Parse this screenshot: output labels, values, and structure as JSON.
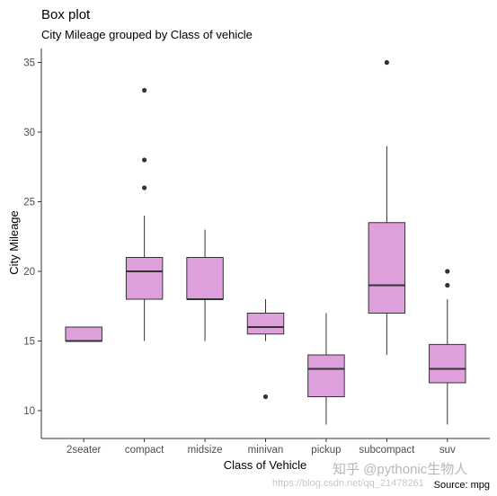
{
  "chart_data": {
    "type": "box",
    "title": "Box plot",
    "subtitle": "City Mileage grouped by Class of vehicle",
    "xlabel": "Class of Vehicle",
    "ylabel": "City Mileage",
    "caption": "Source: mpg",
    "ylim": [
      8,
      36
    ],
    "yticks": [
      10,
      15,
      20,
      25,
      30,
      35
    ],
    "grid": false,
    "box_fill": "#dda0dd",
    "box_stroke": "#333333",
    "categories": [
      "2seater",
      "compact",
      "midsize",
      "minivan",
      "pickup",
      "subcompact",
      "suv"
    ],
    "boxes": [
      {
        "category": "2seater",
        "whisker_low": 15,
        "q1": 15,
        "median": 15,
        "q3": 16,
        "whisker_high": 16,
        "outliers": []
      },
      {
        "category": "compact",
        "whisker_low": 15,
        "q1": 18,
        "median": 20,
        "q3": 21,
        "whisker_high": 24,
        "outliers": [
          26,
          28,
          33
        ]
      },
      {
        "category": "midsize",
        "whisker_low": 15,
        "q1": 18,
        "median": 18,
        "q3": 21,
        "whisker_high": 23,
        "outliers": []
      },
      {
        "category": "minivan",
        "whisker_low": 15,
        "q1": 15.5,
        "median": 16,
        "q3": 17,
        "whisker_high": 18,
        "outliers": [
          11
        ]
      },
      {
        "category": "pickup",
        "whisker_low": 9,
        "q1": 11,
        "median": 13,
        "q3": 14,
        "whisker_high": 17,
        "outliers": []
      },
      {
        "category": "subcompact",
        "whisker_low": 14,
        "q1": 17,
        "median": 19,
        "q3": 23.5,
        "whisker_high": 29,
        "outliers": [
          35
        ]
      },
      {
        "category": "suv",
        "whisker_low": 9,
        "q1": 12,
        "median": 13,
        "q3": 14.75,
        "whisker_high": 18,
        "outliers": [
          19,
          20
        ]
      }
    ]
  },
  "watermark": {
    "main": "知乎 @pythonic生物人",
    "sub": "https://blog.csdn.net/qq_21478261"
  }
}
